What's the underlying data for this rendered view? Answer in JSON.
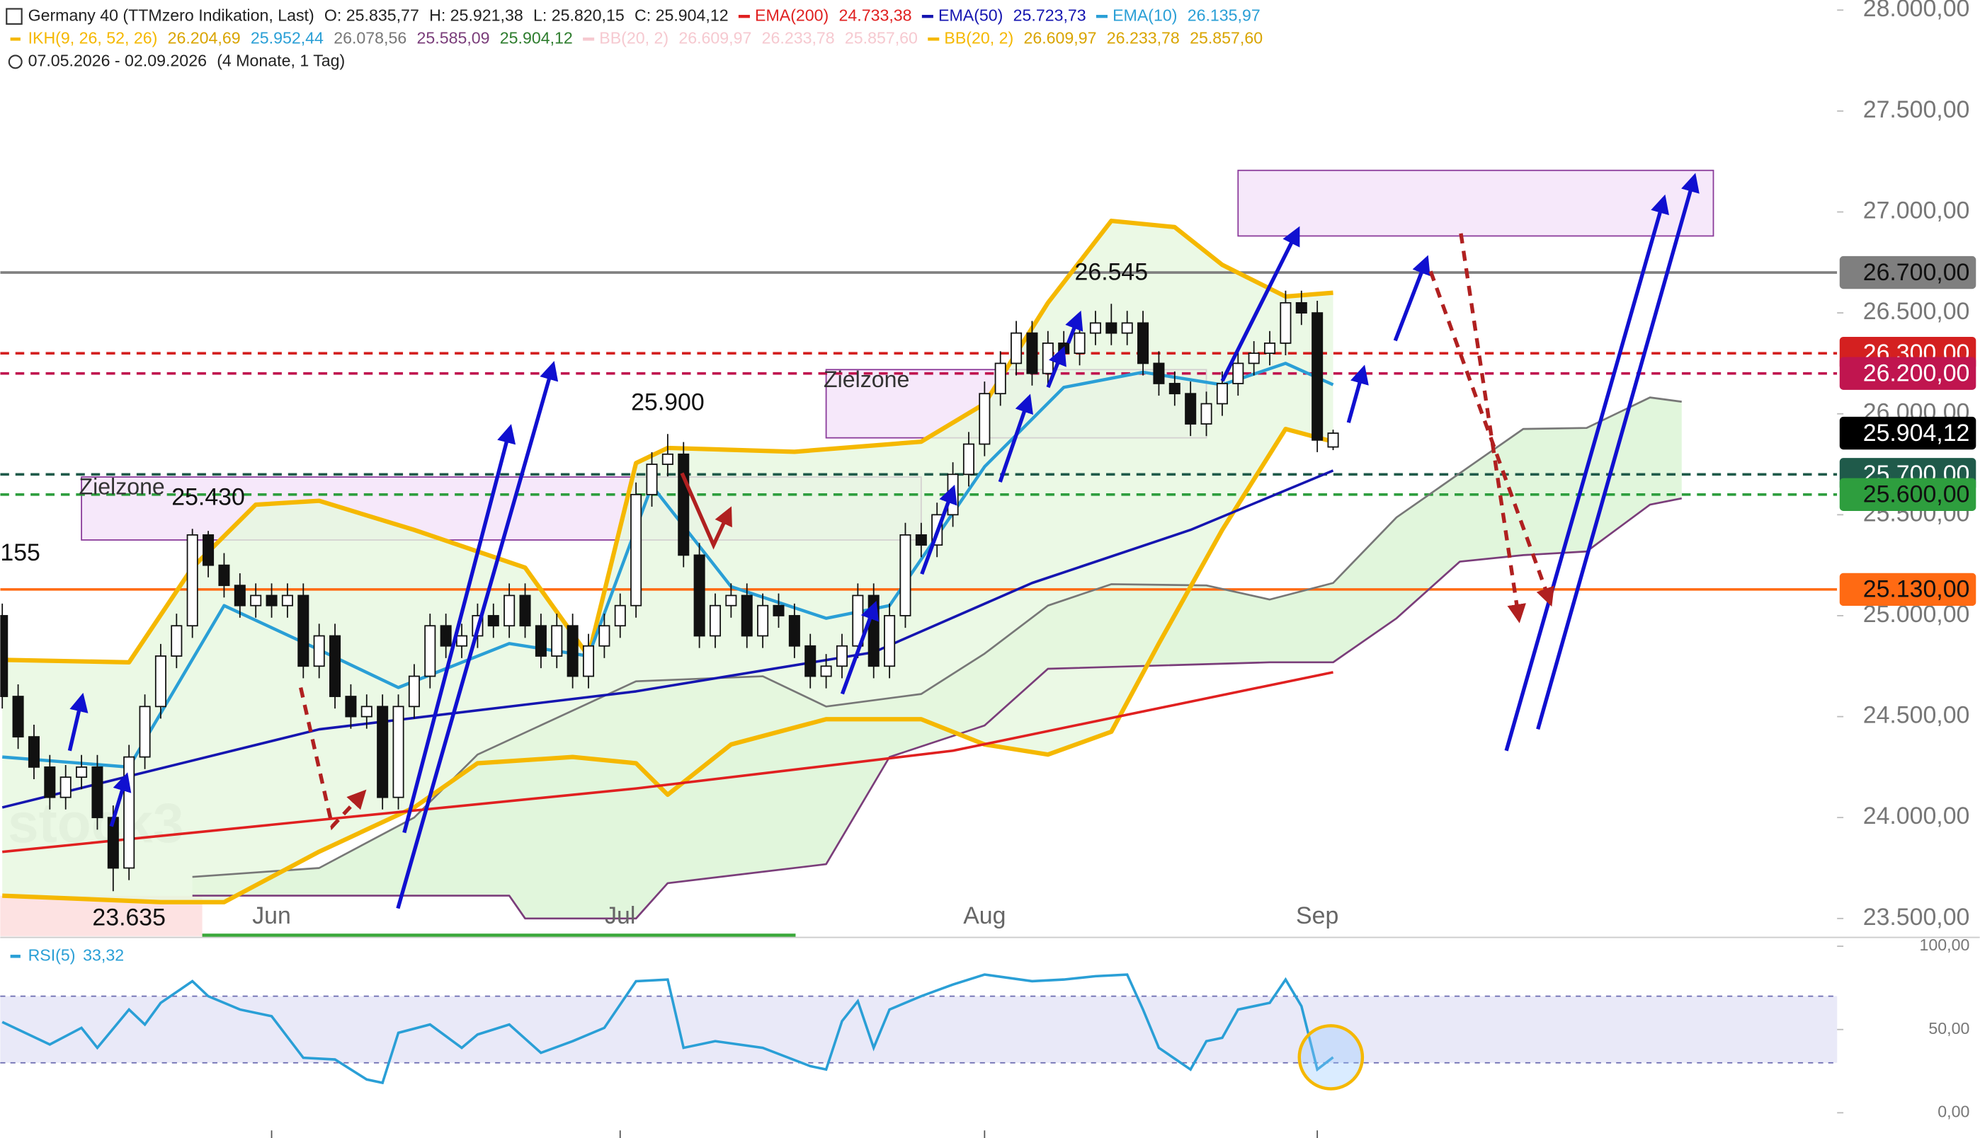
{
  "header": {
    "symbol": "Germany 40 (TTMzero Indikation, Last)",
    "ohlc": [
      "O: 25.835,77",
      "H: 25.921,38",
      "L: 25.820,15",
      "C: 25.904,12"
    ],
    "indicators1": [
      {
        "name": "EMA(200)",
        "values": [
          "24.733,38"
        ],
        "color": "#e02020"
      },
      {
        "name": "EMA(50)",
        "values": [
          "25.723,73"
        ],
        "color": "#1515b0"
      },
      {
        "name": "EMA(10)",
        "values": [
          "26.135,97"
        ],
        "color": "#2a9fd6"
      }
    ],
    "indicators2": [
      {
        "name": "IKH(9, 26, 52, 26)",
        "values": [
          "26.204,69",
          "25.952,44",
          "26.078,56",
          "25.585,09",
          "25.904,12"
        ],
        "color": "#f5b800",
        "value_colors": [
          "#d9a400",
          "#2a9fd6",
          "#777777",
          "#7a3d7a",
          "#2e7d2e"
        ]
      },
      {
        "name": "BB(20, 2)",
        "values": [
          "26.609,97",
          "26.233,78",
          "25.857,60"
        ],
        "color": "#f6c9d0",
        "value_colors": [
          "#f6c9d0",
          "#f6c9d0",
          "#f6c9d0"
        ]
      },
      {
        "name": "BB(20, 2)",
        "values": [
          "26.609,97",
          "26.233,78",
          "25.857,60"
        ],
        "color": "#f5b800",
        "value_colors": [
          "#d9a400",
          "#d9a400",
          "#d9a400"
        ]
      }
    ],
    "range": "07.05.2026 - 02.09.2026",
    "period": "(4 Monate, 1 Tag)"
  },
  "chart_data": [
    {
      "type": "candlestick",
      "watermark": "stock3",
      "up_color": "#ffffff",
      "down_color": "#111111",
      "open": [
        25000,
        24600,
        24400,
        24250,
        24100,
        24200,
        24250,
        24000,
        23750,
        24300,
        24550,
        24800,
        24950,
        25400,
        25250,
        25150,
        25050,
        25100,
        25050,
        25100,
        24750,
        24900,
        24600,
        24500,
        24550,
        24100,
        24550,
        24700,
        24950,
        24850,
        24900,
        25000,
        24950,
        25100,
        24950,
        24800,
        24950,
        24700,
        24850,
        24950,
        25050,
        25600,
        25750,
        25800,
        25300,
        24900,
        25050,
        25100,
        24900,
        25050,
        25000,
        24850,
        24700,
        24750,
        24850,
        25100,
        24750,
        25000,
        25400,
        25350,
        25500,
        25700,
        25850,
        26100,
        26250,
        26400,
        26200,
        26350,
        26300,
        26400,
        26450,
        26400,
        26450,
        26250,
        26150,
        26100,
        25950,
        26050,
        26150,
        26250,
        26300,
        26350,
        26550,
        26500,
        25835.77
      ],
      "high": [
        25060,
        24660,
        24460,
        24310,
        24260,
        24310,
        24310,
        24060,
        24360,
        24610,
        24860,
        25010,
        25430,
        25420,
        25310,
        25210,
        25160,
        25160,
        25160,
        25160,
        24960,
        24960,
        24660,
        24610,
        24610,
        24610,
        24760,
        25010,
        25010,
        24960,
        25060,
        25060,
        25160,
        25160,
        25010,
        25010,
        25010,
        24910,
        25010,
        25110,
        25660,
        25810,
        25900,
        25860,
        25360,
        25110,
        25160,
        25160,
        25110,
        25110,
        25060,
        24910,
        24810,
        24910,
        25160,
        25160,
        25060,
        25460,
        25460,
        25560,
        25760,
        25910,
        26160,
        26310,
        26460,
        26460,
        26410,
        26410,
        26460,
        26510,
        26545,
        26510,
        26510,
        26310,
        26210,
        26160,
        26110,
        26210,
        26310,
        26360,
        26410,
        26610,
        26610,
        26560,
        25921.38
      ],
      "low": [
        24540,
        24340,
        24190,
        24040,
        24040,
        24140,
        23940,
        23635,
        23690,
        24240,
        24490,
        24740,
        24890,
        25190,
        25090,
        24990,
        24990,
        24990,
        24990,
        24690,
        24690,
        24540,
        24440,
        24440,
        24040,
        24040,
        24490,
        24640,
        24790,
        24790,
        24840,
        24890,
        24890,
        24890,
        24740,
        24740,
        24640,
        24640,
        24790,
        24890,
        24990,
        25540,
        25690,
        25240,
        24840,
        24840,
        24990,
        24840,
        24840,
        24940,
        24790,
        24640,
        24640,
        24690,
        24790,
        24690,
        24690,
        24940,
        25290,
        25290,
        25440,
        25640,
        25790,
        26040,
        26190,
        26140,
        26140,
        26240,
        26240,
        26340,
        26340,
        26340,
        26190,
        26090,
        26040,
        25890,
        25890,
        25990,
        26090,
        26190,
        26240,
        26290,
        26440,
        25810,
        25820.15
      ],
      "close": [
        24600,
        24400,
        24250,
        24100,
        24200,
        24250,
        24000,
        23750,
        24300,
        24550,
        24800,
        24950,
        25400,
        25250,
        25150,
        25050,
        25100,
        25050,
        25100,
        24750,
        24900,
        24600,
        24500,
        24550,
        24100,
        24550,
        24700,
        24950,
        24850,
        24900,
        25000,
        24950,
        25100,
        24950,
        24800,
        24950,
        24700,
        24850,
        24950,
        25050,
        25600,
        25750,
        25800,
        25300,
        24900,
        25050,
        25100,
        24900,
        25050,
        25000,
        24850,
        24700,
        24750,
        24850,
        25100,
        24750,
        25000,
        25400,
        25350,
        25500,
        25700,
        25850,
        26100,
        26250,
        26400,
        26200,
        26350,
        26300,
        26400,
        26450,
        26400,
        26450,
        26250,
        26150,
        26100,
        25950,
        26050,
        26150,
        26250,
        26300,
        26350,
        26550,
        26500,
        25870,
        25904.12
      ],
      "xlim": [
        0,
        116
      ],
      "xticks": [
        {
          "value": 17,
          "label": "Jun"
        },
        {
          "value": 39,
          "label": "Jul"
        },
        {
          "value": 62,
          "label": "Aug"
        },
        {
          "value": 83,
          "label": "Sep"
        }
      ],
      "ylim": [
        23500,
        28000
      ],
      "yticks": [
        {
          "value": 28000,
          "label": "28.000,00"
        },
        {
          "value": 27500,
          "label": "27.500,00"
        },
        {
          "value": 27000,
          "label": "27.000,00"
        },
        {
          "value": 26500,
          "label": "26.500,00"
        },
        {
          "value": 26000,
          "label": "26.000,00"
        },
        {
          "value": 25500,
          "label": "25.500,00"
        },
        {
          "value": 25000,
          "label": "25.000,00"
        },
        {
          "value": 24500,
          "label": "24.500,00"
        },
        {
          "value": 24000,
          "label": "24.000,00"
        },
        {
          "value": 23500,
          "label": "23.500,00"
        }
      ],
      "zones": [
        {
          "label": "Zielzone",
          "x": [
            5,
            58
          ],
          "y": [
            25375,
            25687
          ]
        },
        {
          "label": "Zielzone",
          "x": [
            52,
            76
          ],
          "y": [
            25881,
            26219
          ]
        },
        {
          "x": [
            78,
            108
          ],
          "y": [
            26881,
            27206
          ]
        }
      ],
      "lines": [
        {
          "color": "#777777",
          "width": 1.5,
          "fill": "#d9f4d3",
          "x": [
            12,
            20,
            26,
            30,
            40,
            48,
            52,
            58,
            62,
            66,
            70,
            76,
            80,
            84,
            88,
            92,
            96,
            100,
            104,
            106
          ],
          "values": [
            23706,
            23750,
            24000,
            24312,
            24675,
            24700,
            24550,
            24612,
            24812,
            25050,
            25156,
            25150,
            25080,
            25162,
            25487,
            25706,
            25925,
            25930,
            26081,
            26060
          ]
        },
        {
          "color": "#7a3d7a",
          "width": 1.5,
          "x": [
            12,
            32,
            33,
            40,
            42,
            52,
            56,
            62,
            66,
            80,
            84,
            88,
            92,
            96,
            100,
            104,
            106
          ],
          "values": [
            23613,
            23613,
            23500,
            23500,
            23675,
            23769,
            24300,
            24456,
            24737,
            24769,
            24769,
            24987,
            25268,
            25300,
            25318,
            25550,
            25581
          ]
        },
        {
          "color": "#f5b800",
          "width": 3.5,
          "fill": "#e6f7de",
          "x": [
            0,
            8,
            12,
            16,
            20,
            26,
            33,
            37,
            40,
            42,
            50,
            58,
            62,
            66,
            70,
            74,
            77,
            81,
            84
          ],
          "values": [
            24781,
            24769,
            25238,
            25550,
            25569,
            25425,
            25238,
            24800,
            25756,
            25831,
            25812,
            25862,
            26050,
            26550,
            26956,
            26925,
            26738,
            26581,
            26600
          ]
        },
        {
          "color": "#f5b800",
          "width": 3.5,
          "x": [
            0,
            10,
            14,
            20,
            26,
            30,
            36,
            40,
            42,
            46,
            52,
            58,
            62,
            66,
            70,
            73,
            77,
            81,
            84
          ],
          "values": [
            23613,
            23581,
            23581,
            23831,
            24050,
            24269,
            24300,
            24269,
            24113,
            24362,
            24487,
            24487,
            24362,
            24312,
            24425,
            24862,
            25425,
            25925,
            25862
          ]
        },
        {
          "name": "EMA(200)",
          "color": "#e02020",
          "width": 2,
          "x": [
            0,
            20,
            40,
            60,
            84
          ],
          "values": [
            23830,
            23988,
            24144,
            24331,
            24720
          ]
        },
        {
          "name": "EMA(50)",
          "color": "#1515b0",
          "width": 2,
          "x": [
            0,
            20,
            40,
            55,
            65,
            75,
            84
          ],
          "values": [
            24050,
            24437,
            24625,
            24819,
            25162,
            25425,
            25719
          ]
        },
        {
          "name": "EMA(10)",
          "color": "#2a9fd6",
          "width": 2.5,
          "x": [
            0,
            8,
            14,
            20,
            25,
            32,
            37,
            41,
            46,
            52,
            56,
            62,
            67,
            72,
            77,
            81,
            84
          ],
          "values": [
            24300,
            24250,
            25050,
            24831,
            24644,
            24862,
            24800,
            25644,
            25144,
            24987,
            25050,
            25738,
            26131,
            26206,
            26144,
            26250,
            26144
          ]
        }
      ],
      "levels": [
        {
          "value": 26700,
          "label": "26.700,00",
          "color": "#7f7f7f",
          "text_color": "#111111",
          "style": "solid"
        },
        {
          "value": 26300,
          "label": "26.300,00",
          "color": "#d42020",
          "text_color": "#ffffff",
          "style": "dashed"
        },
        {
          "value": 26200,
          "label": "26.200,00",
          "color": "#c0154f",
          "text_color": "#ffffff",
          "style": "dashed"
        },
        {
          "value": 25700,
          "label": "25.700,00",
          "color": "#1f5a4a",
          "text_color": "#ffffff",
          "style": "dashed"
        },
        {
          "value": 25600,
          "label": "25.600,00",
          "color": "#2e9e3e",
          "text_color": "#111111",
          "style": "dashed"
        },
        {
          "value": 25130,
          "label": "25.130,00",
          "color": "#ff6a13",
          "text_color": "#111111",
          "style": "solid"
        }
      ],
      "last_price": {
        "value": 25904.12,
        "label": "25.904,12",
        "color": "#000000",
        "text_color": "#ffffff"
      },
      "annotations": [
        {
          "x": 0,
          "value": 25155,
          "label": "155",
          "side": "above"
        },
        {
          "x": 13,
          "value": 25430,
          "label": "25.430",
          "side": "above"
        },
        {
          "x": 8,
          "value": 23635,
          "label": "23.635",
          "side": "below"
        },
        {
          "x": 42,
          "value": 25900,
          "label": "25.900",
          "side": "above"
        },
        {
          "x": 70,
          "value": 26545,
          "label": "26.545",
          "side": "above"
        }
      ]
    },
    {
      "type": "line",
      "title": "RSI(5)",
      "value_label": "33,32",
      "color": "#2a9fd6",
      "x": [
        0,
        3,
        5,
        6,
        8,
        9,
        10,
        12,
        13,
        15,
        17,
        19,
        21,
        23,
        24,
        25,
        27,
        29,
        30,
        32,
        34,
        36,
        38,
        40,
        42,
        43,
        45,
        48,
        51,
        52,
        53,
        54,
        55,
        56,
        58,
        60,
        62,
        65,
        67,
        69,
        71,
        72,
        73,
        75,
        76,
        77,
        78,
        80,
        81,
        82,
        83,
        84
      ],
      "values": [
        54.5,
        41,
        51,
        39,
        62,
        53,
        66,
        79,
        70,
        62,
        58,
        33,
        32,
        20,
        18,
        48,
        53,
        39,
        47,
        53,
        36,
        43,
        51,
        79,
        80,
        39,
        43,
        39,
        28,
        26,
        55,
        67,
        39,
        62,
        70,
        77,
        83,
        79,
        80,
        82,
        83,
        62,
        39,
        26,
        43,
        45,
        62,
        66,
        80,
        64,
        26,
        33.32
      ],
      "ylim": [
        0,
        100
      ],
      "yticks": [
        {
          "value": 100,
          "label": "100,00"
        },
        {
          "value": 50,
          "label": "50,00"
        },
        {
          "value": 0,
          "label": "0,00"
        }
      ],
      "bands": [
        30,
        70
      ]
    }
  ]
}
